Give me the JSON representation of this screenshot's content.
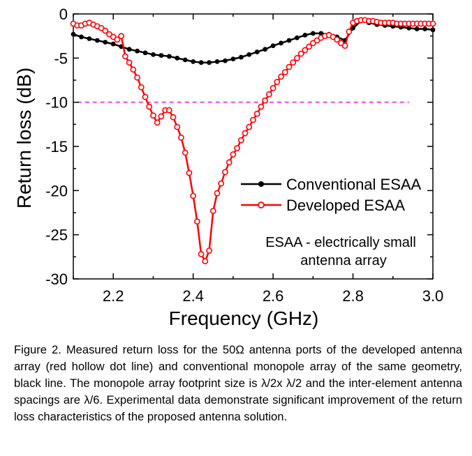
{
  "chart_data": {
    "type": "line",
    "xlabel": "Frequency (GHz)",
    "ylabel": "Return loss (dB)",
    "xlim": [
      2.1,
      3.0
    ],
    "ylim": [
      -30,
      0
    ],
    "xticks": [
      "2.2",
      "2.4",
      "2.6",
      "2.8",
      "3.0"
    ],
    "yticks": [
      "0",
      "-5",
      "-10",
      "-15",
      "-20",
      "-25",
      "-30"
    ],
    "xtick_values": [
      2.2,
      2.4,
      2.6,
      2.8,
      3.0
    ],
    "ytick_values": [
      0,
      -5,
      -10,
      -15,
      -20,
      -25,
      -30
    ],
    "grid": false,
    "legend_position": "center-right",
    "reference_line": {
      "y": -10,
      "x_start": 2.11,
      "x_end": 2.94,
      "color": "#e040e0",
      "style": "dashed"
    },
    "annotation": [
      "ESAA - electrically small",
      "antenna array"
    ],
    "series": [
      {
        "name": "Conventional ESAA",
        "color": "#000000",
        "marker": "filled-circle",
        "x": [
          2.1,
          2.12,
          2.14,
          2.16,
          2.18,
          2.2,
          2.22,
          2.24,
          2.26,
          2.28,
          2.3,
          2.32,
          2.34,
          2.36,
          2.38,
          2.4,
          2.42,
          2.44,
          2.46,
          2.48,
          2.5,
          2.52,
          2.54,
          2.56,
          2.58,
          2.6,
          2.62,
          2.64,
          2.66,
          2.68,
          2.7,
          2.72,
          2.74,
          2.76,
          2.78,
          2.8,
          2.82,
          2.84,
          2.86,
          2.88,
          2.9,
          2.92,
          2.94,
          2.96,
          2.98,
          3.0
        ],
        "y": [
          -2.3,
          -2.6,
          -2.8,
          -3.0,
          -3.2,
          -3.4,
          -3.7,
          -4.0,
          -4.2,
          -4.4,
          -4.6,
          -4.7,
          -4.8,
          -5.0,
          -5.2,
          -5.4,
          -5.5,
          -5.5,
          -5.4,
          -5.3,
          -5.1,
          -4.9,
          -4.6,
          -4.3,
          -4.0,
          -3.6,
          -3.3,
          -3.0,
          -2.7,
          -2.4,
          -2.2,
          -2.2,
          -2.3,
          -2.6,
          -3.0,
          -1.6,
          -0.8,
          -1.0,
          -1.2,
          -1.3,
          -1.4,
          -1.5,
          -1.6,
          -1.7,
          -1.7,
          -1.8
        ]
      },
      {
        "name": "Developed ESAA",
        "color": "#ff0000",
        "marker": "hollow-circle",
        "x": [
          2.1,
          2.11,
          2.12,
          2.13,
          2.14,
          2.15,
          2.16,
          2.17,
          2.18,
          2.19,
          2.2,
          2.21,
          2.22,
          2.23,
          2.24,
          2.25,
          2.26,
          2.27,
          2.28,
          2.29,
          2.3,
          2.31,
          2.32,
          2.33,
          2.34,
          2.35,
          2.36,
          2.37,
          2.38,
          2.39,
          2.4,
          2.41,
          2.42,
          2.43,
          2.44,
          2.45,
          2.46,
          2.47,
          2.48,
          2.49,
          2.5,
          2.51,
          2.52,
          2.53,
          2.54,
          2.55,
          2.56,
          2.57,
          2.58,
          2.59,
          2.6,
          2.61,
          2.62,
          2.63,
          2.64,
          2.65,
          2.66,
          2.67,
          2.68,
          2.69,
          2.7,
          2.71,
          2.72,
          2.73,
          2.74,
          2.75,
          2.76,
          2.77,
          2.78,
          2.79,
          2.8,
          2.81,
          2.82,
          2.83,
          2.84,
          2.85,
          2.86,
          2.87,
          2.88,
          2.89,
          2.9,
          2.91,
          2.92,
          2.93,
          2.94,
          2.95,
          2.96,
          2.97,
          2.98,
          2.99,
          3.0
        ],
        "y": [
          -1.1,
          -1.3,
          -1.3,
          -1.1,
          -1.0,
          -1.2,
          -1.4,
          -1.6,
          -1.9,
          -2.3,
          -2.6,
          -2.9,
          -2.5,
          -4.8,
          -5.5,
          -6.3,
          -7.2,
          -8.3,
          -9.4,
          -10.5,
          -11.5,
          -12.3,
          -11.6,
          -10.9,
          -10.9,
          -11.7,
          -12.8,
          -14.0,
          -15.7,
          -18.0,
          -20.6,
          -23.5,
          -27.2,
          -28.0,
          -26.8,
          -22.3,
          -20.3,
          -19.2,
          -17.9,
          -16.8,
          -15.9,
          -15.2,
          -14.3,
          -13.5,
          -12.8,
          -12.0,
          -11.3,
          -10.5,
          -9.8,
          -9.1,
          -8.4,
          -7.7,
          -7.1,
          -6.6,
          -6.0,
          -5.5,
          -5.0,
          -4.5,
          -4.1,
          -3.7,
          -3.3,
          -3.0,
          -2.7,
          -2.5,
          -2.4,
          -2.6,
          -2.9,
          -3.3,
          -3.6,
          -2.0,
          -1.0,
          -0.8,
          -0.7,
          -0.7,
          -0.8,
          -0.8,
          -0.9,
          -1.0,
          -1.0,
          -1.0,
          -1.0,
          -1.1,
          -1.1,
          -1.1,
          -1.1,
          -1.1,
          -1.1,
          -1.1,
          -1.1,
          -1.1,
          -1.1
        ]
      }
    ]
  },
  "caption": "Figure 2. Measured return loss for the 50Ω antenna ports of the developed antenna array (red hollow dot line) and conventional monopole array of the same geometry, black line. The monopole array footprint size is λ/2x λ/2 and the inter-element antenna spacings are λ/6.  Experimental data demonstrate significant improvement of the return loss characteristics of the proposed antenna solution."
}
